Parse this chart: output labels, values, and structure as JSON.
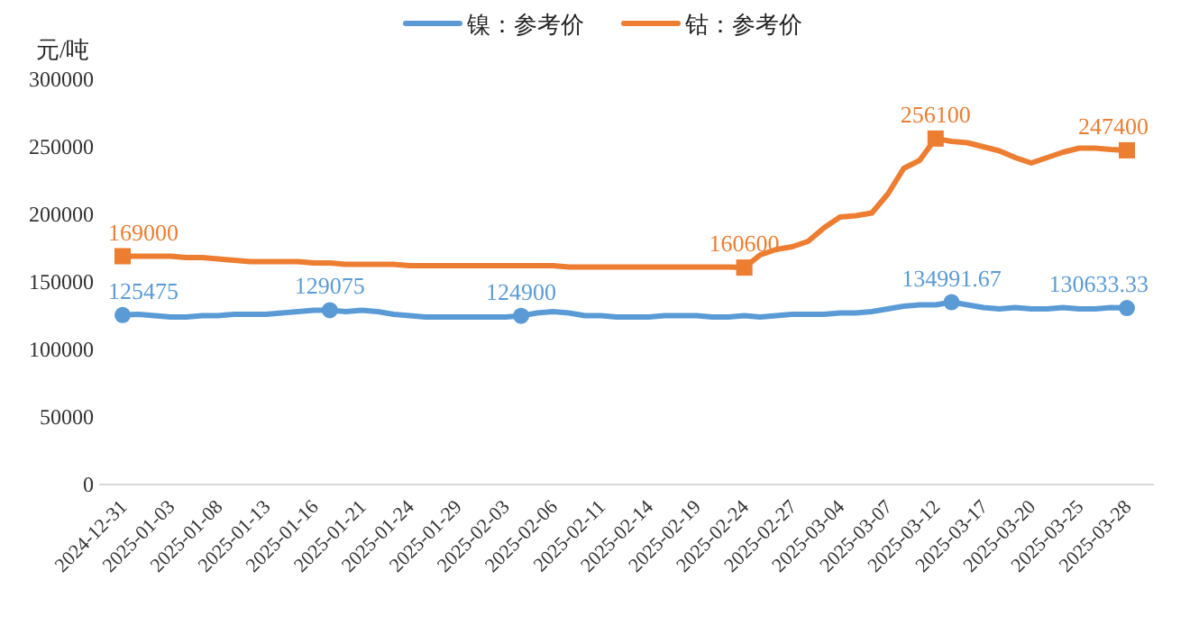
{
  "chart_data": {
    "type": "line",
    "ylabel": "元/吨",
    "legend": "top",
    "grid": false,
    "categories": [
      "2024-12-31",
      null,
      null,
      "2025-01-03",
      null,
      null,
      "2025-01-08",
      null,
      null,
      "2025-01-13",
      null,
      null,
      "2025-01-16",
      null,
      null,
      "2025-01-21",
      null,
      null,
      "2025-01-24",
      null,
      null,
      "2025-01-29",
      null,
      null,
      "2025-02-03",
      null,
      null,
      "2025-02-06",
      null,
      null,
      "2025-02-11",
      null,
      null,
      "2025-02-14",
      null,
      null,
      "2025-02-19",
      null,
      null,
      "2025-02-24",
      null,
      null,
      "2025-02-27",
      null,
      null,
      "2025-03-04",
      null,
      null,
      "2025-03-07",
      null,
      null,
      "2025-03-12",
      null,
      null,
      "2025-03-17",
      null,
      null,
      "2025-03-20",
      null,
      null,
      "2025-03-25",
      null,
      null,
      "2025-03-28"
    ],
    "ylim": [
      0,
      300000
    ],
    "yticks": [
      0,
      50000,
      100000,
      150000,
      200000,
      250000,
      300000
    ],
    "series": [
      {
        "name": "镍：参考价",
        "color": "#5b9bd5",
        "values": [
          125475,
          126000,
          125000,
          124000,
          124000,
          125000,
          125000,
          126000,
          126000,
          126000,
          127000,
          128000,
          129000,
          129075,
          128000,
          129000,
          128000,
          126000,
          125000,
          124000,
          124000,
          124000,
          124000,
          124000,
          124000,
          124900,
          127000,
          128000,
          127000,
          125000,
          125000,
          124000,
          124000,
          124000,
          125000,
          125000,
          125000,
          124000,
          124000,
          125000,
          124000,
          125000,
          126000,
          126000,
          126000,
          127000,
          127000,
          128000,
          130000,
          132000,
          133000,
          133000,
          134991.67,
          133000,
          131000,
          130000,
          131000,
          130000,
          130000,
          131000,
          130000,
          130000,
          131000,
          130633.33
        ],
        "value_labels": [
          "125475",
          null,
          null,
          null,
          null,
          null,
          null,
          null,
          null,
          null,
          null,
          null,
          null,
          "129075",
          null,
          null,
          null,
          null,
          null,
          null,
          null,
          null,
          null,
          null,
          null,
          "124900",
          null,
          null,
          null,
          null,
          null,
          null,
          null,
          null,
          null,
          null,
          null,
          null,
          null,
          null,
          null,
          null,
          null,
          null,
          null,
          null,
          null,
          null,
          null,
          null,
          null,
          null,
          "134991.67",
          null,
          null,
          null,
          null,
          null,
          null,
          null,
          null,
          null,
          null,
          "130633.33"
        ]
      },
      {
        "name": "钴：参考价",
        "color": "#ed7d31",
        "values": [
          169000,
          169000,
          169000,
          169000,
          168000,
          168000,
          167000,
          166000,
          165000,
          165000,
          165000,
          165000,
          164000,
          164000,
          163000,
          163000,
          163000,
          163000,
          162000,
          162000,
          162000,
          162000,
          162000,
          162000,
          162000,
          162000,
          162000,
          162000,
          161000,
          161000,
          161000,
          161000,
          161000,
          161000,
          161000,
          161000,
          161000,
          161000,
          161000,
          160600,
          170000,
          174000,
          176000,
          180000,
          190000,
          198000,
          199000,
          201000,
          215000,
          234000,
          240000,
          256100,
          254000,
          253000,
          250000,
          247000,
          242000,
          238000,
          242000,
          246000,
          249000,
          249000,
          248000,
          247400
        ],
        "value_labels": [
          "169000",
          null,
          null,
          null,
          null,
          null,
          null,
          null,
          null,
          null,
          null,
          null,
          null,
          null,
          null,
          null,
          null,
          null,
          null,
          null,
          null,
          null,
          null,
          null,
          null,
          null,
          null,
          null,
          null,
          null,
          null,
          null,
          null,
          null,
          null,
          null,
          null,
          null,
          null,
          "160600",
          null,
          null,
          null,
          null,
          null,
          null,
          null,
          null,
          null,
          null,
          null,
          "256100",
          null,
          null,
          null,
          null,
          null,
          null,
          null,
          null,
          null,
          null,
          null,
          "247400"
        ]
      }
    ]
  }
}
